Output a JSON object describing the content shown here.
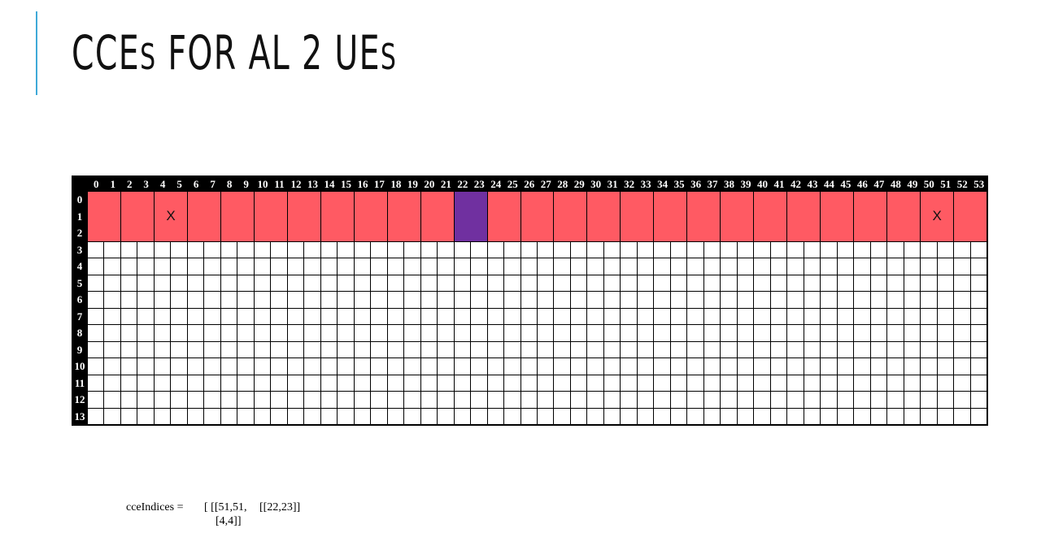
{
  "slide": {
    "title_parts": [
      "CCE",
      "S",
      " FOR AL 2 UE",
      "S"
    ]
  },
  "grid": {
    "column_labels": [
      "0",
      "1",
      "2",
      "3",
      "4",
      "5",
      "6",
      "7",
      "8",
      "9",
      "10",
      "11",
      "12",
      "13",
      "14",
      "15",
      "16",
      "17",
      "18",
      "19",
      "20",
      "21",
      "22",
      "23",
      "24",
      "25",
      "26",
      "27",
      "28",
      "29",
      "30",
      "31",
      "32",
      "33",
      "34",
      "35",
      "36",
      "37",
      "38",
      "39",
      "40",
      "41",
      "42",
      "43",
      "44",
      "45",
      "46",
      "47",
      "48",
      "49",
      "50",
      "51",
      "52",
      "53"
    ],
    "row_labels": [
      "0",
      "1",
      "2",
      "3",
      "4",
      "5",
      "6",
      "7",
      "8",
      "9",
      "10",
      "11",
      "12",
      "13"
    ],
    "allocated_rows": [
      0,
      2
    ],
    "allocated_cce_pairs": 27,
    "highlight_pair": [
      22,
      23
    ],
    "marks": [
      {
        "cce_pair": [
          4,
          5
        ],
        "symbol": "X"
      },
      {
        "cce_pair": [
          50,
          51
        ],
        "symbol": "X"
      }
    ],
    "colors": {
      "allocated": "#ff5a63",
      "highlight": "#7030a0",
      "header_bg": "#000000"
    }
  },
  "formula": {
    "label": "cceIndices =",
    "open": "[ [[51,51,",
    "second": "[[22,23]]",
    "continuation": "[4,4]]"
  }
}
